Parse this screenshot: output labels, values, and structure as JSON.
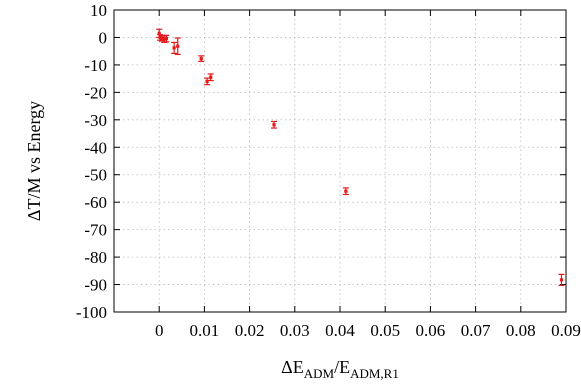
{
  "chart_data": {
    "type": "scatter",
    "xlabel": "ΔE",
    "xlabel_sub1": "ADM",
    "xlabel_mid": "/E",
    "xlabel_sub2": "ADM,R1",
    "ylabel": "ΔT/M vs Energy",
    "xlim": [
      -0.01,
      0.09
    ],
    "ylim": [
      -100,
      10
    ],
    "xticks": [
      0,
      0.01,
      0.02,
      0.03,
      0.04,
      0.05,
      0.06,
      0.07,
      0.08,
      0.09
    ],
    "xtick_labels": [
      "0",
      "0.01",
      "0.02",
      "0.03",
      "0.04",
      "0.05",
      "0.06",
      "0.07",
      "0.08",
      "0.09"
    ],
    "yticks": [
      10,
      0,
      -10,
      -20,
      -30,
      -40,
      -50,
      -60,
      -70,
      -80,
      -90,
      -100
    ],
    "ytick_labels": [
      "10",
      "0",
      "-10",
      "-20",
      "-30",
      "-40",
      "-50",
      "-60",
      "-70",
      "-80",
      "-90",
      "-100"
    ],
    "grid": true,
    "marker_color": "#e41a1c",
    "points": [
      {
        "x": 0.0,
        "y": 1.5,
        "err": 1.5
      },
      {
        "x": 0.0002,
        "y": 0.0,
        "err": 1.0
      },
      {
        "x": 0.0006,
        "y": -0.3,
        "err": 1.0
      },
      {
        "x": 0.0011,
        "y": -0.6,
        "err": 1.2
      },
      {
        "x": 0.0016,
        "y": -0.4,
        "err": 1.2
      },
      {
        "x": 0.0033,
        "y": -3.8,
        "err": 2.0
      },
      {
        "x": 0.0041,
        "y": -3.2,
        "err": 3.0
      },
      {
        "x": 0.0093,
        "y": -7.7,
        "err": 1.0
      },
      {
        "x": 0.0106,
        "y": -16.0,
        "err": 1.2
      },
      {
        "x": 0.0114,
        "y": -14.5,
        "err": 1.2
      },
      {
        "x": 0.0254,
        "y": -31.8,
        "err": 1.2
      },
      {
        "x": 0.0413,
        "y": -56.0,
        "err": 1.2
      },
      {
        "x": 0.089,
        "y": -88.3,
        "err": 2.0
      }
    ]
  }
}
